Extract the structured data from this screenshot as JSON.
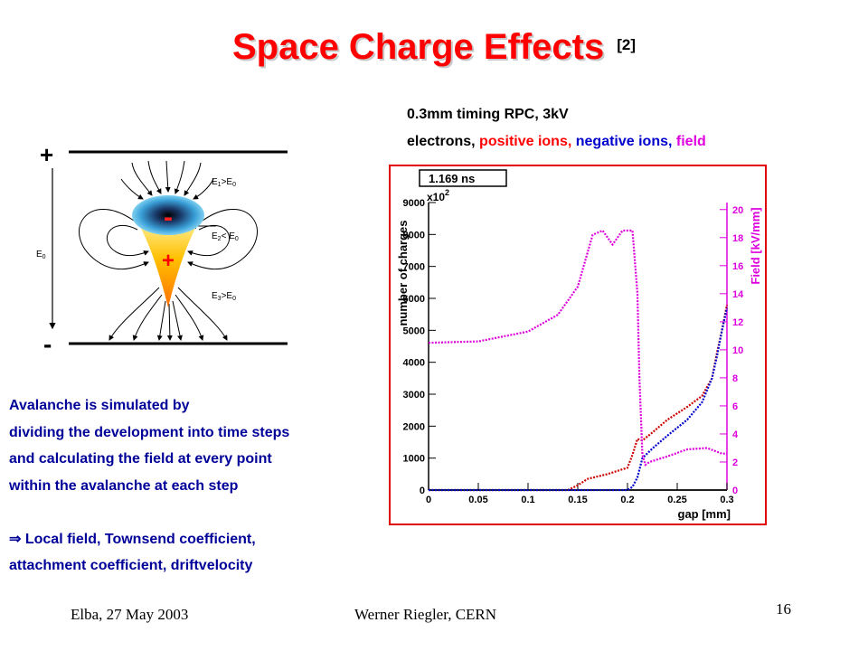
{
  "slide": {
    "title": "Space Charge Effects",
    "title_ref": "[2]",
    "subtitle_line1": "0.3mm timing RPC,  3kV",
    "legend": {
      "electrons": "electrons,",
      "positive": "positive ions,",
      "negative": "negative ions,",
      "field": "field"
    },
    "description": [
      "Avalanche is simulated by",
      "dividing the development into time steps",
      "and calculating the field at every point",
      "within the avalanche at each step"
    ],
    "arrow_symbol": "⇒",
    "conclusion_line1": "Local field, Townsend coefficient,",
    "conclusion_line2": "attachment coefficient, driftvelocity",
    "footer_left": "Elba, 27 May 2003",
    "footer_center": "Werner Riegler, CERN",
    "page_number": "16"
  },
  "figure": {
    "top_plus": "+",
    "bottom_minus": "-",
    "avalanche_minus": "-",
    "avalanche_plus": "+",
    "e0_label": "E",
    "e0_sub": "0",
    "e1_label": "E",
    "e1_sub": "1",
    "e1_rel": ">E",
    "e1_rel_sub": "0",
    "e2_label": "E",
    "e2_sub": "2",
    "e2_rel": "< E",
    "e2_rel_sub": "0",
    "e3_label": "E",
    "e3_sub": "3",
    "e3_rel": ">E",
    "e3_rel_sub": "0"
  },
  "chart_data": {
    "type": "line",
    "time_box": "1.169 ns",
    "multiplier_base": "x10",
    "multiplier_exp": "2",
    "xlabel": "gap [mm]",
    "ylabel": "number of charges",
    "y2label": "Field [kV/mm]",
    "xlim": [
      0,
      0.3
    ],
    "ylim": [
      0,
      9000
    ],
    "y2lim": [
      0,
      20.5
    ],
    "xticks": [
      "0",
      "0.05",
      "0.1",
      "0.15",
      "0.2",
      "0.25",
      "0.3"
    ],
    "yticks": [
      "0",
      "1000",
      "2000",
      "3000",
      "4000",
      "5000",
      "6000",
      "7000",
      "8000",
      "9000"
    ],
    "y2ticks": [
      "0",
      "2",
      "4",
      "6",
      "8",
      "10",
      "12",
      "14",
      "16",
      "18",
      "20"
    ],
    "colors": {
      "electrons": "#000000",
      "positive_ions": "#cc0000",
      "negative_ions": "#0000cc",
      "field": "#dd00dd",
      "frame": "#e00000"
    },
    "series": [
      {
        "name": "electrons",
        "axis": "left",
        "x": [
          0,
          0.1,
          0.2,
          0.3
        ],
        "y": [
          0,
          0,
          0,
          0
        ]
      },
      {
        "name": "positive ions",
        "axis": "left",
        "x": [
          0,
          0.14,
          0.15,
          0.16,
          0.18,
          0.2,
          0.205,
          0.21,
          0.215,
          0.225,
          0.24,
          0.26,
          0.275,
          0.285,
          0.29,
          0.295,
          0.3
        ],
        "y": [
          0,
          0,
          150,
          350,
          500,
          700,
          1100,
          1600,
          1550,
          1800,
          2200,
          2600,
          2950,
          3500,
          4300,
          5000,
          5800
        ]
      },
      {
        "name": "negative ions",
        "axis": "left",
        "x": [
          0,
          0.2,
          0.205,
          0.21,
          0.215,
          0.225,
          0.24,
          0.26,
          0.275,
          0.285,
          0.29,
          0.295,
          0.3
        ],
        "y": [
          0,
          0,
          100,
          400,
          1000,
          1300,
          1700,
          2200,
          2750,
          3500,
          4200,
          5000,
          5700
        ]
      },
      {
        "name": "field",
        "axis": "right",
        "x": [
          0,
          0.05,
          0.1,
          0.13,
          0.15,
          0.165,
          0.175,
          0.185,
          0.195,
          0.205,
          0.21,
          0.212,
          0.215,
          0.218,
          0.222,
          0.24,
          0.26,
          0.28,
          0.295,
          0.3
        ],
        "y": [
          10.5,
          10.6,
          11.3,
          12.5,
          14.5,
          18.2,
          18.5,
          17.5,
          18.5,
          18.5,
          14.0,
          8.0,
          2.5,
          1.8,
          2.0,
          2.4,
          2.9,
          3.0,
          2.6,
          2.6
        ]
      }
    ]
  }
}
